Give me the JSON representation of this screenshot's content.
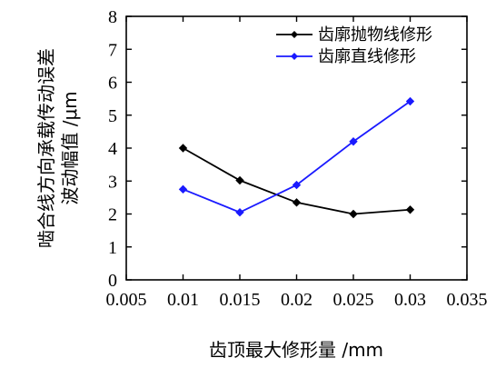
{
  "chart_data": {
    "type": "line",
    "xlabel": "齿顶最大修形量 /mm",
    "ylabel_lines": [
      "啮合线方向承载传动误差",
      "波动幅值 /μm"
    ],
    "xlim": [
      0.005,
      0.035
    ],
    "ylim": [
      0,
      8
    ],
    "x_ticks": [
      "0.005",
      "0.01",
      "0.015",
      "0.02",
      "0.025",
      "0.03",
      "0.035"
    ],
    "y_ticks": [
      "0",
      "1",
      "2",
      "3",
      "4",
      "5",
      "6",
      "7",
      "8"
    ],
    "x": [
      0.01,
      0.015,
      0.02,
      0.025,
      0.03
    ],
    "series": [
      {
        "name": "齿廓抛物线修形",
        "color": "#000000",
        "values": [
          4.0,
          3.02,
          2.35,
          2.0,
          2.13
        ]
      },
      {
        "name": "齿廓直线修形",
        "color": "#1a1aff",
        "values": [
          2.75,
          2.05,
          2.88,
          4.2,
          5.42
        ]
      }
    ],
    "legend_position": "top-right",
    "grid": false
  }
}
